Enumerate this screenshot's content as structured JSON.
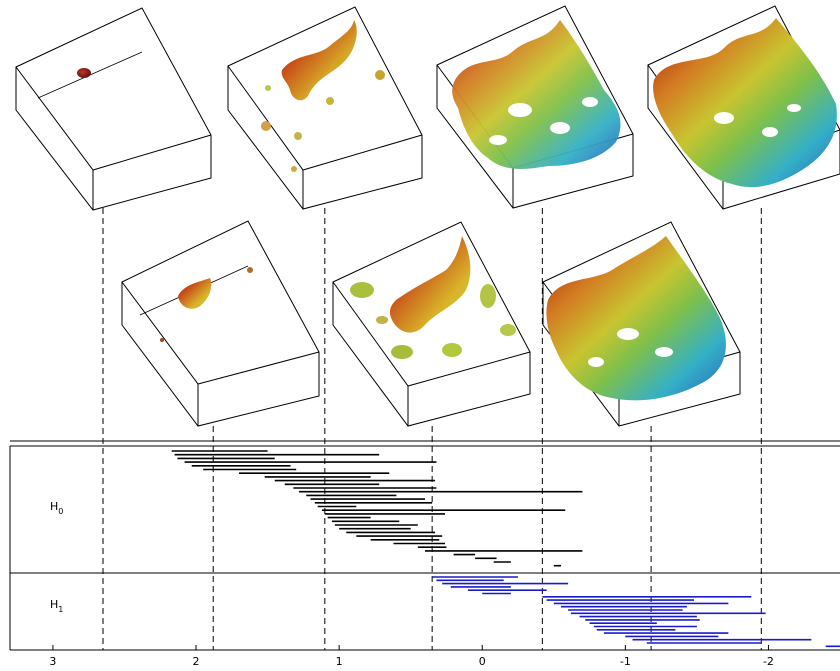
{
  "barcode": {
    "h0_label": "H",
    "h0_sub": "0",
    "h1_label": "H",
    "h1_sub": "1",
    "h0_color": "#000000",
    "h1_color": "#1a1acd",
    "x_domain": [
      3.3,
      -2.5
    ],
    "ticks": [
      {
        "value": 3,
        "label": "3"
      },
      {
        "value": 2,
        "label": "2"
      },
      {
        "value": 1,
        "label": "1"
      },
      {
        "value": 0,
        "label": "0"
      },
      {
        "value": -1,
        "label": "-1"
      },
      {
        "value": -2,
        "label": "-2"
      }
    ],
    "thresholds": [
      2.65,
      1.88,
      1.1,
      0.35,
      -0.42,
      -1.18,
      -1.95
    ],
    "h0_bars": [
      [
        2.17,
        1.5
      ],
      [
        2.15,
        0.72
      ],
      [
        2.13,
        1.45
      ],
      [
        2.08,
        0.32
      ],
      [
        2.03,
        1.34
      ],
      [
        1.95,
        1.3
      ],
      [
        1.7,
        0.65
      ],
      [
        1.52,
        0.78
      ],
      [
        1.45,
        0.33
      ],
      [
        1.38,
        0.72
      ],
      [
        1.32,
        0.32
      ],
      [
        1.28,
        -0.7
      ],
      [
        1.23,
        0.6
      ],
      [
        1.2,
        0.4
      ],
      [
        1.17,
        0.35
      ],
      [
        1.15,
        0.88
      ],
      [
        1.12,
        -0.58
      ],
      [
        1.1,
        0.26
      ],
      [
        1.08,
        0.78
      ],
      [
        1.05,
        0.58
      ],
      [
        1.03,
        0.45
      ],
      [
        1.0,
        0.5
      ],
      [
        0.95,
        0.33
      ],
      [
        0.88,
        0.28
      ],
      [
        0.78,
        0.3
      ],
      [
        0.62,
        0.26
      ],
      [
        0.45,
        0.25
      ],
      [
        0.4,
        -0.7
      ],
      [
        0.2,
        0.05
      ],
      [
        0.05,
        -0.1
      ],
      [
        -0.08,
        -0.2
      ],
      [
        -0.5,
        -0.55
      ]
    ],
    "h1_bars": [
      [
        0.35,
        -0.25
      ],
      [
        0.32,
        -0.15
      ],
      [
        0.28,
        -0.6
      ],
      [
        0.22,
        -0.2
      ],
      [
        0.1,
        -0.45
      ],
      [
        0.0,
        -0.2
      ],
      [
        -0.42,
        -1.88
      ],
      [
        -0.45,
        -1.48
      ],
      [
        -0.5,
        -1.72
      ],
      [
        -0.55,
        -1.43
      ],
      [
        -0.6,
        -1.4
      ],
      [
        -0.62,
        -1.98
      ],
      [
        -0.68,
        -1.5
      ],
      [
        -0.72,
        -1.52
      ],
      [
        -0.75,
        -1.22
      ],
      [
        -0.78,
        -1.5
      ],
      [
        -0.8,
        -1.35
      ],
      [
        -0.85,
        -1.72
      ],
      [
        -1.0,
        -1.65
      ],
      [
        -1.05,
        -2.3
      ],
      [
        -1.15,
        -1.95
      ],
      [
        -2.4,
        -2.6
      ]
    ]
  }
}
